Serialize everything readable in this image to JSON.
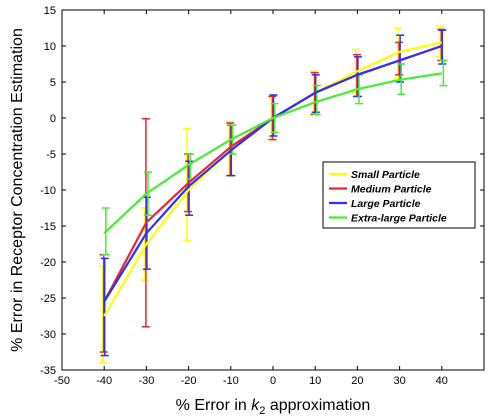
{
  "chart_data": {
    "type": "line",
    "title": "",
    "xlabel_prefix": "% Error in ",
    "xlabel_symbol": "k",
    "xlabel_subscript": "2",
    "xlabel_suffix": " approximation",
    "ylabel": "% Error in Receptor Concentration Estimation",
    "xlim": [
      -50,
      50
    ],
    "ylim": [
      -35,
      15
    ],
    "xticks": [
      -50,
      -40,
      -30,
      -20,
      -10,
      0,
      10,
      20,
      30,
      40
    ],
    "yticks": [
      -35,
      -30,
      -25,
      -20,
      -15,
      -10,
      -5,
      0,
      5,
      10,
      15
    ],
    "grid": false,
    "legend_position": "right",
    "x": [
      -40,
      -30,
      -20,
      -10,
      0,
      10,
      20,
      30,
      40
    ],
    "series": [
      {
        "name": "Small Particle",
        "color": "#ffff00",
        "y": [
          -27.5,
          -17.5,
          -10.0,
          -4.5,
          0.0,
          3.5,
          6.5,
          9.2,
          10.5
        ],
        "lower": [
          -34.0,
          -22.5,
          -17.0,
          -8.0,
          -3.0,
          0.5,
          3.5,
          5.5,
          8.5
        ],
        "upper": [
          -20.5,
          -12.5,
          -1.5,
          -0.5,
          3.0,
          6.5,
          9.5,
          12.5,
          12.8
        ]
      },
      {
        "name": "Medium Particle",
        "color": "#e8262e",
        "y": [
          -25.5,
          -14.5,
          -9.0,
          -4.0,
          0.0,
          3.5,
          6.0,
          8.0,
          10.0
        ],
        "lower": [
          -32.5,
          -29.0,
          -13.0,
          -8.0,
          -3.0,
          0.5,
          3.0,
          6.0,
          8.0
        ],
        "upper": [
          -19.0,
          -0.1,
          -5.0,
          -0.7,
          3.0,
          6.3,
          8.8,
          10.5,
          12.3
        ]
      },
      {
        "name": "Large Particle",
        "color": "#2e2eff",
        "y": [
          -25.5,
          -16.0,
          -9.5,
          -4.5,
          0.0,
          3.5,
          6.0,
          8.0,
          10.0
        ],
        "lower": [
          -33.0,
          -21.0,
          -13.5,
          -8.0,
          -2.5,
          0.8,
          3.0,
          5.0,
          7.5
        ],
        "upper": [
          -19.5,
          -11.0,
          -6.0,
          -1.0,
          3.2,
          6.0,
          8.5,
          11.5,
          12.2
        ]
      },
      {
        "name": "Extra-large Particle",
        "color": "#44ee33",
        "y": [
          -16.0,
          -10.5,
          -6.5,
          -3.0,
          0.0,
          2.2,
          4.0,
          5.3,
          6.2
        ],
        "lower": [
          -19.0,
          -13.5,
          -8.5,
          -5.0,
          -2.0,
          0.5,
          2.0,
          3.3,
          4.5
        ],
        "upper": [
          -12.5,
          -7.5,
          -5.0,
          -1.0,
          2.0,
          4.5,
          6.0,
          7.5,
          8.0
        ]
      }
    ]
  }
}
